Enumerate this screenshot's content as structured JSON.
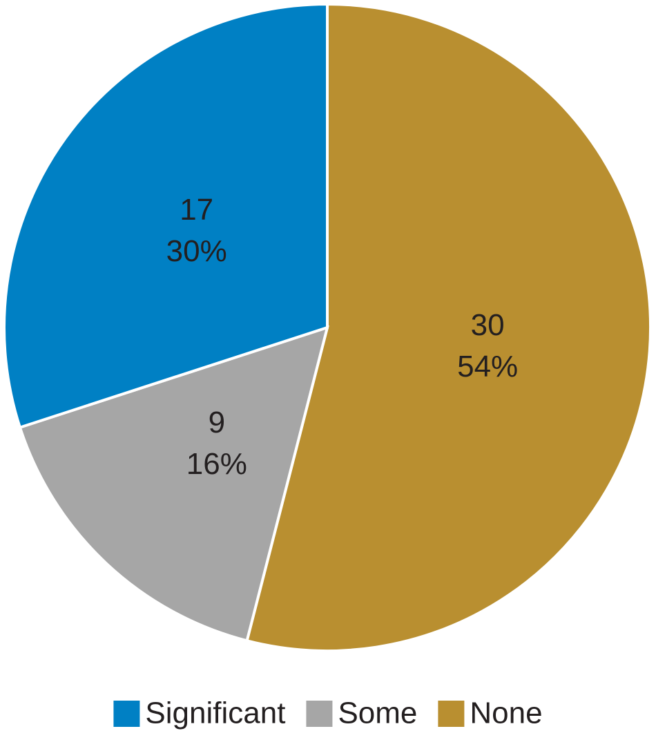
{
  "chart_data": {
    "type": "pie",
    "categories": [
      "None",
      "Some",
      "Significant"
    ],
    "values": [
      54,
      16,
      30
    ],
    "value_labels": [
      "54%",
      "16%",
      "30%"
    ],
    "counts": [
      30,
      9,
      17
    ],
    "colors": [
      "#b98f30",
      "#a6a6a6",
      "#0080c4"
    ],
    "legend_order": [
      2,
      1,
      0
    ],
    "legend": "bottom"
  }
}
